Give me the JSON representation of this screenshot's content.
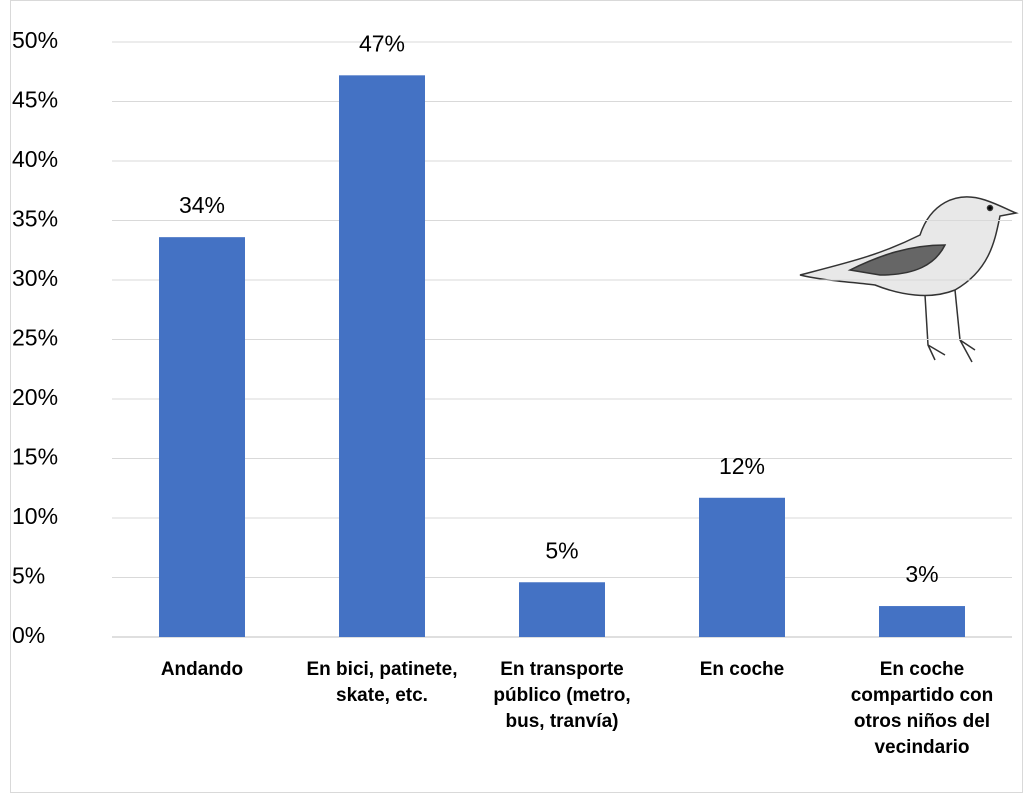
{
  "chart_data": {
    "type": "bar",
    "categories": [
      "Andando",
      "En bici, patinete, skate, etc.",
      "En transporte público (metro, bus, tranvía)",
      "En coche",
      "En coche compartido con otros niños del vecindario"
    ],
    "values": [
      33.6,
      47.2,
      4.6,
      11.7,
      2.6
    ],
    "value_labels": [
      "34%",
      "47%",
      "5%",
      "12%",
      "3%"
    ],
    "color": "#4472c4",
    "ylim": [
      0,
      50
    ],
    "yticks": [
      {
        "value": 0,
        "label": "0%"
      },
      {
        "value": 5,
        "label": "5%"
      },
      {
        "value": 10,
        "label": "10%"
      },
      {
        "value": 15,
        "label": "15%"
      },
      {
        "value": 20,
        "label": "20%"
      },
      {
        "value": 25,
        "label": "25%"
      },
      {
        "value": 30,
        "label": "30%"
      },
      {
        "value": 35,
        "label": "35%"
      },
      {
        "value": 40,
        "label": "40%"
      },
      {
        "value": 45,
        "label": "45%"
      },
      {
        "value": 50,
        "label": "50%"
      }
    ],
    "grid": true
  }
}
